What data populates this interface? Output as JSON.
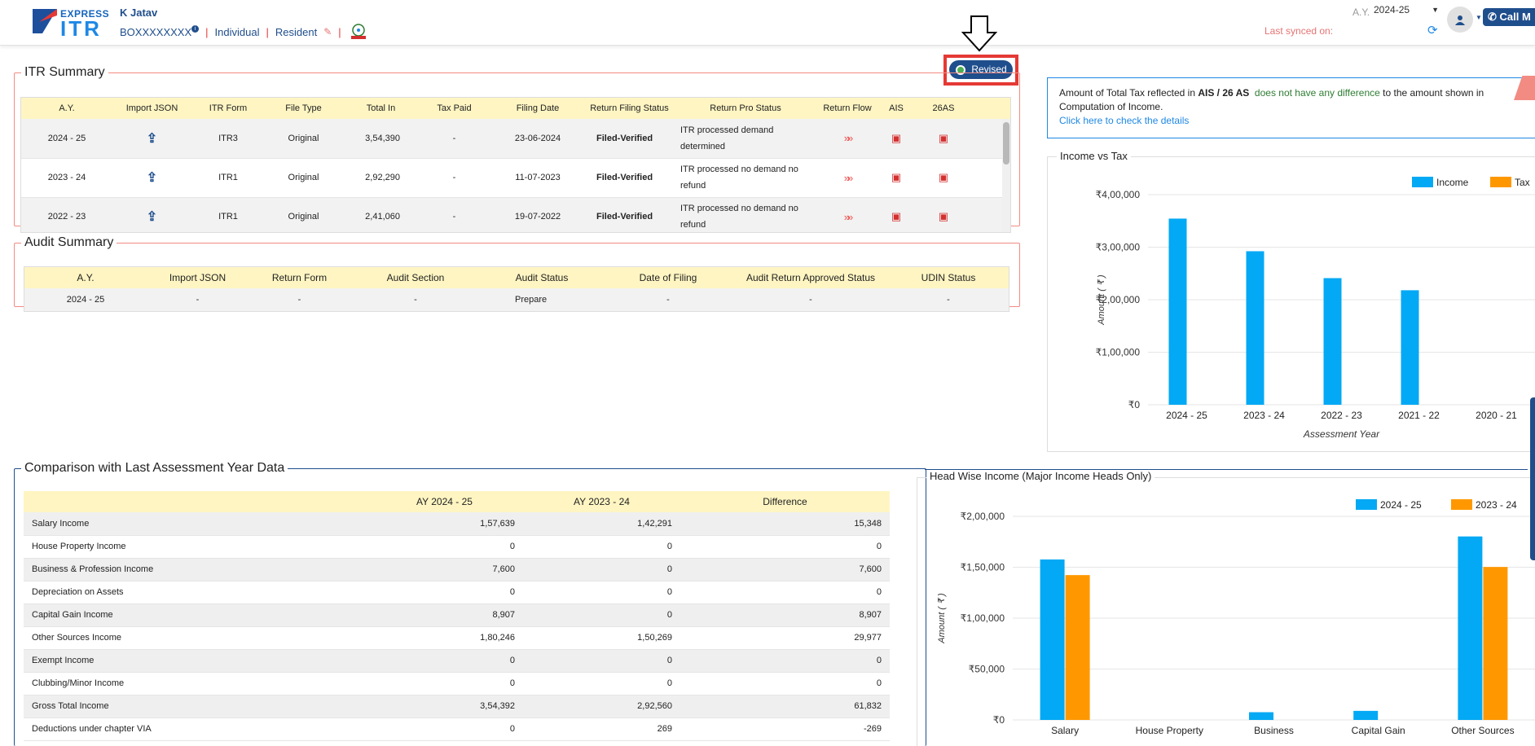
{
  "header": {
    "logo_top": "EXPRESS",
    "logo_bottom": "ITR",
    "user_name": "K Jatav",
    "pan": "BOXXXXXXXX",
    "category": "Individual",
    "residency": "Resident",
    "ay_label": "A.Y.",
    "ay_value": "2024-25",
    "last_synced": "Last synced on:",
    "call_label": "Call M"
  },
  "revised_button": "Revised",
  "itr_summary": {
    "title": "ITR Summary",
    "columns": [
      "A.Y.",
      "Import JSON",
      "ITR Form",
      "File Type",
      "Total In",
      "Tax Paid",
      "Filing Date",
      "Return Filing Status",
      "Return Pro Status",
      "Return Flow",
      "AIS",
      "26AS"
    ],
    "rows": [
      {
        "ay": "2024 - 25",
        "form": "ITR3",
        "type": "Original",
        "total": "3,54,390",
        "tax": "-",
        "date": "23-06-2024",
        "status": "Filed-Verified",
        "pro1": "ITR processed demand",
        "pro2": "determined"
      },
      {
        "ay": "2023 - 24",
        "form": "ITR1",
        "type": "Original",
        "total": "2,92,290",
        "tax": "-",
        "date": "11-07-2023",
        "status": "Filed-Verified",
        "pro1": "ITR processed no demand no",
        "pro2": "refund"
      },
      {
        "ay": "2022 - 23",
        "form": "ITR1",
        "type": "Original",
        "total": "2,41,060",
        "tax": "-",
        "date": "19-07-2022",
        "status": "Filed-Verified",
        "pro1": "ITR processed no demand no",
        "pro2": "refund"
      }
    ]
  },
  "audit_summary": {
    "title": "Audit Summary",
    "columns": [
      "A.Y.",
      "Import JSON",
      "Return Form",
      "Audit Section",
      "Audit Status",
      "Date of Filing",
      "Audit Return Approved Status",
      "UDIN Status"
    ],
    "row": [
      "2024 - 25",
      "-",
      "-",
      "-",
      "Prepare",
      "-",
      "-",
      "-"
    ]
  },
  "tax_note": {
    "p1": "Amount of Total Tax reflected in ",
    "p2": "AIS / 26 AS",
    "p3": "does not have any difference",
    "p4": " to the amount shown in Computation of Income.",
    "link": "Click here to check the details"
  },
  "comparison": {
    "title": "Comparison with Last Assessment Year Data",
    "columns": [
      "",
      "AY 2024 - 25",
      "AY 2023 - 24",
      "Difference"
    ],
    "rows": [
      [
        "Salary Income",
        "1,57,639",
        "1,42,291",
        "15,348"
      ],
      [
        "House Property Income",
        "0",
        "0",
        "0"
      ],
      [
        "Business & Profession Income",
        "7,600",
        "0",
        "7,600"
      ],
      [
        "Depreciation on Assets",
        "0",
        "0",
        "0"
      ],
      [
        "Capital Gain Income",
        "8,907",
        "0",
        "8,907"
      ],
      [
        "Other Sources Income",
        "1,80,246",
        "1,50,269",
        "29,977"
      ],
      [
        "Exempt Income",
        "0",
        "0",
        "0"
      ],
      [
        "Clubbing/Minor Income",
        "0",
        "0",
        "0"
      ],
      [
        "Gross Total Income",
        "3,54,392",
        "2,92,560",
        "61,832"
      ],
      [
        "Deductions under chapter VIA",
        "0",
        "269",
        "-269"
      ]
    ]
  },
  "chart_data": [
    {
      "type": "bar",
      "title": "Income vs Tax",
      "xlabel": "Assessment Year",
      "ylabel": "Amount ( ₹ )",
      "categories": [
        "2024 - 25",
        "2023 - 24",
        "2022 - 23",
        "2021 - 22",
        "2020 - 21"
      ],
      "series": [
        {
          "name": "Income",
          "color": "#03a9f4",
          "values": [
            354390,
            292290,
            241060,
            218000,
            0
          ]
        },
        {
          "name": "Tax",
          "color": "#ff9800",
          "values": [
            0,
            0,
            0,
            0,
            0
          ]
        }
      ],
      "ylim": [
        0,
        400000
      ],
      "yticks": [
        "₹0",
        "₹1,00,000",
        "₹2,00,000",
        "₹3,00,000",
        "₹4,00,000"
      ],
      "legend": "top-right"
    },
    {
      "type": "bar",
      "title": "Head Wise Income (Major Income Heads Only)",
      "ylabel": "Amount ( ₹ )",
      "categories": [
        "Salary",
        "House Property",
        "Business",
        "Capital Gain",
        "Other Sources"
      ],
      "series": [
        {
          "name": "2024 - 25",
          "color": "#03a9f4",
          "values": [
            157639,
            0,
            7600,
            8907,
            180246
          ]
        },
        {
          "name": "2023 - 24",
          "color": "#ff9800",
          "values": [
            142291,
            0,
            0,
            0,
            150269
          ]
        }
      ],
      "ylim": [
        0,
        200000
      ],
      "yticks": [
        "₹0",
        "₹50,000",
        "₹1,00,000",
        "₹1,50,000",
        "₹2,00,000"
      ],
      "legend": "top-right"
    }
  ]
}
